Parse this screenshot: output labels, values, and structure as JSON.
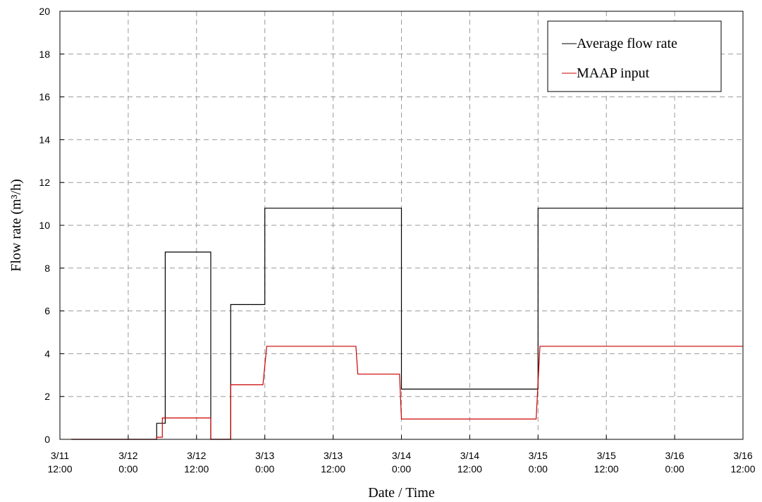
{
  "chart_data": {
    "type": "line",
    "xlabel": "Date / Time",
    "ylabel": "Flow rate (m³/h)",
    "ylim": [
      0,
      20
    ],
    "yticks": [
      0,
      2,
      4,
      6,
      8,
      10,
      12,
      14,
      16,
      18,
      20
    ],
    "xlim": [
      "3/11 12:00",
      "3/16 12:00"
    ],
    "xticks": [
      {
        "line1": "3/11",
        "line2": "12:00"
      },
      {
        "line1": "3/12",
        "line2": "0:00"
      },
      {
        "line1": "3/12",
        "line2": "12:00"
      },
      {
        "line1": "3/13",
        "line2": "0:00"
      },
      {
        "line1": "3/13",
        "line2": "12:00"
      },
      {
        "line1": "3/14",
        "line2": "0:00"
      },
      {
        "line1": "3/14",
        "line2": "12:00"
      },
      {
        "line1": "3/15",
        "line2": "0:00"
      },
      {
        "line1": "3/15",
        "line2": "12:00"
      },
      {
        "line1": "3/16",
        "line2": "0:00"
      },
      {
        "line1": "3/16",
        "line2": "12:00"
      }
    ],
    "grid": true,
    "legend_position": "top-right",
    "series": [
      {
        "name": "Average flow rate",
        "color": "#000000",
        "points": [
          [
            "3/11 14:00",
            0
          ],
          [
            "3/12 5:00",
            0
          ],
          [
            "3/12 5:00",
            0.75
          ],
          [
            "3/12 6:30",
            0.75
          ],
          [
            "3/12 6:30",
            8.75
          ],
          [
            "3/12 14:30",
            8.75
          ],
          [
            "3/12 14:30",
            0
          ],
          [
            "3/12 18:00",
            0
          ],
          [
            "3/12 18:00",
            6.3
          ],
          [
            "3/13 0:00",
            6.3
          ],
          [
            "3/13 0:00",
            10.8
          ],
          [
            "3/14 0:00",
            10.8
          ],
          [
            "3/14 0:00",
            2.35
          ],
          [
            "3/15 0:00",
            2.35
          ],
          [
            "3/15 0:00",
            10.8
          ],
          [
            "3/16 12:00",
            10.8
          ]
        ]
      },
      {
        "name": "MAAP input",
        "color": "#cc0000",
        "points": [
          [
            "3/11 14:00",
            0
          ],
          [
            "3/12 5:00",
            0
          ],
          [
            "3/12 5:00",
            0.1
          ],
          [
            "3/12 6:00",
            0.1
          ],
          [
            "3/12 6:00",
            1.0
          ],
          [
            "3/12 14:30",
            1.0
          ],
          [
            "3/12 14:30",
            0
          ],
          [
            "3/12 18:00",
            0
          ],
          [
            "3/12 18:00",
            2.55
          ],
          [
            "3/12 23:40",
            2.55
          ],
          [
            "3/13 0:20",
            4.35
          ],
          [
            "3/13 16:00",
            4.35
          ],
          [
            "3/13 16:20",
            3.05
          ],
          [
            "3/13 23:40",
            3.05
          ],
          [
            "3/14 0:00",
            0.95
          ],
          [
            "3/14 23:40",
            0.95
          ],
          [
            "3/15 0:20",
            4.35
          ],
          [
            "3/16 12:00",
            4.35
          ]
        ]
      }
    ]
  }
}
